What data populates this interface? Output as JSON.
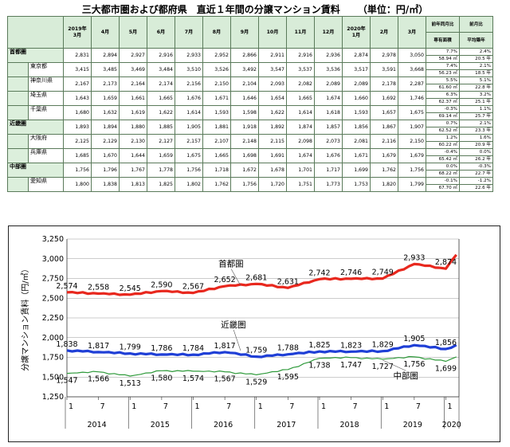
{
  "title": "三大都市圏および都府県　直近１年間の分譲マンション賃料",
  "unit": "（単位：円/㎡）",
  "table": {
    "months": [
      "2019年\n3月",
      "4月",
      "5月",
      "6月",
      "7月",
      "8月",
      "9月",
      "10月",
      "11月",
      "12月",
      "2020年\n1月",
      "2月",
      "3月"
    ],
    "yoy_header": "前年同月比",
    "yoy_sub": "専有面積",
    "mom_header": "前月比",
    "mom_sub": "平均築年",
    "rows": [
      {
        "region": "首都圏",
        "pref": "",
        "values": [
          "2,831",
          "2,894",
          "2,927",
          "2,916",
          "2,933",
          "2,952",
          "2,866",
          "2,911",
          "2,916",
          "2,936",
          "2,874",
          "2,978",
          "3,050"
        ],
        "yoy": "7.7%",
        "mom": "2.4%",
        "area": "58.94 ㎡",
        "age": "20.5 年"
      },
      {
        "region": "",
        "pref": "東京都",
        "values": [
          "3,415",
          "3,485",
          "3,469",
          "3,484",
          "3,510",
          "3,526",
          "3,492",
          "3,547",
          "3,537",
          "3,536",
          "3,517",
          "3,591",
          "3,668"
        ],
        "yoy": "7.4%",
        "mom": "2.1%",
        "area": "56.23 ㎡",
        "age": "18.5 年"
      },
      {
        "region": "",
        "pref": "神奈川県",
        "values": [
          "2,167",
          "2,173",
          "2,164",
          "2,174",
          "2,156",
          "2,150",
          "2,104",
          "2,093",
          "2,082",
          "2,089",
          "2,089",
          "2,178",
          "2,287"
        ],
        "yoy": "5.5%",
        "mom": "5.1%",
        "area": "61.60 ㎡",
        "age": "22.8 年"
      },
      {
        "region": "",
        "pref": "埼玉県",
        "values": [
          "1,643",
          "1,659",
          "1,661",
          "1,665",
          "1,676",
          "1,671",
          "1,646",
          "1,654",
          "1,665",
          "1,674",
          "1,660",
          "1,692",
          "1,746"
        ],
        "yoy": "6.3%",
        "mom": "3.2%",
        "area": "62.37 ㎡",
        "age": "25.1 年"
      },
      {
        "region": "",
        "pref": "千葉県",
        "values": [
          "1,680",
          "1,632",
          "1,619",
          "1,622",
          "1,614",
          "1,593",
          "1,598",
          "1,622",
          "1,614",
          "1,618",
          "1,593",
          "1,657",
          "1,675"
        ],
        "yoy": "-0.3%",
        "mom": "1.1%",
        "area": "69.14 ㎡",
        "age": "25.7 年"
      },
      {
        "region": "近畿圏",
        "pref": "",
        "values": [
          "1,893",
          "1,894",
          "1,880",
          "1,885",
          "1,905",
          "1,881",
          "1,918",
          "1,892",
          "1,874",
          "1,857",
          "1,856",
          "1,867",
          "1,907"
        ],
        "yoy": "0.7%",
        "mom": "2.1%",
        "area": "62.52 ㎡",
        "age": "23.3 年"
      },
      {
        "region": "",
        "pref": "大阪府",
        "values": [
          "2,125",
          "2,129",
          "2,130",
          "2,127",
          "2,157",
          "2,107",
          "2,148",
          "2,115",
          "2,098",
          "2,073",
          "2,081",
          "2,116",
          "2,150"
        ],
        "yoy": "1.2%",
        "mom": "1.6%",
        "area": "60.22 ㎡",
        "age": "20.9 年"
      },
      {
        "region": "",
        "pref": "兵庫県",
        "values": [
          "1,685",
          "1,670",
          "1,644",
          "1,659",
          "1,675",
          "1,665",
          "1,698",
          "1,691",
          "1,674",
          "1,676",
          "1,671",
          "1,679",
          "1,679"
        ],
        "yoy": "-0.4%",
        "mom": "0.0%",
        "area": "65.42 ㎡",
        "age": "26.2 年"
      },
      {
        "region": "中部圏",
        "pref": "",
        "values": [
          "1,756",
          "1,796",
          "1,767",
          "1,778",
          "1,756",
          "1,718",
          "1,672",
          "1,678",
          "1,701",
          "1,717",
          "1,699",
          "1,762",
          "1,756"
        ],
        "yoy": "0.0%",
        "mom": "-0.3%",
        "area": "68.22 ㎡",
        "age": "22.7 年"
      },
      {
        "region": "",
        "pref": "愛知県",
        "values": [
          "1,800",
          "1,838",
          "1,813",
          "1,825",
          "1,802",
          "1,762",
          "1,756",
          "1,720",
          "1,751",
          "1,773",
          "1,753",
          "1,820",
          "1,799"
        ],
        "yoy": "-0.1%",
        "mom": "-1.2%",
        "area": "67.70 ㎡",
        "age": "22.6 年"
      }
    ]
  },
  "chart_data": {
    "type": "line",
    "ylabel": "分譲マンション賃料（円/㎡）",
    "ylim": [
      1250,
      3250
    ],
    "yticks": [
      "1,250",
      "1,500",
      "1,750",
      "2,000",
      "2,250",
      "2,500",
      "2,750",
      "3,000",
      "3,250"
    ],
    "ytick_values": [
      1250,
      1500,
      1750,
      2000,
      2250,
      2500,
      2750,
      3000,
      3250
    ],
    "x_start": "2014-01",
    "x_end": "2020-03",
    "month_ticks": [
      {
        "date": "2014-01",
        "label": "1"
      },
      {
        "date": "2014-07",
        "label": "7"
      },
      {
        "date": "2015-01",
        "label": "1"
      },
      {
        "date": "2015-07",
        "label": "7"
      },
      {
        "date": "2016-01",
        "label": "1"
      },
      {
        "date": "2016-07",
        "label": "7"
      },
      {
        "date": "2017-01",
        "label": "1"
      },
      {
        "date": "2017-07",
        "label": "7"
      },
      {
        "date": "2018-01",
        "label": "1"
      },
      {
        "date": "2018-07",
        "label": "7"
      },
      {
        "date": "2019-01",
        "label": "1"
      },
      {
        "date": "2019-07",
        "label": "7"
      },
      {
        "date": "2020-01",
        "label": "1"
      }
    ],
    "years": [
      {
        "from": "2014-01",
        "to": "2014-12",
        "label": "2014"
      },
      {
        "from": "2015-01",
        "to": "2015-12",
        "label": "2015"
      },
      {
        "from": "2016-01",
        "to": "2016-12",
        "label": "2016"
      },
      {
        "from": "2017-01",
        "to": "2017-12",
        "label": "2017"
      },
      {
        "from": "2018-01",
        "to": "2018-12",
        "label": "2018"
      },
      {
        "from": "2019-01",
        "to": "2019-12",
        "label": "2019"
      },
      {
        "from": "2020-01",
        "to": "2020-03",
        "label": "2020"
      }
    ],
    "grid": true,
    "series": [
      {
        "name": "首都圏",
        "color": "#e8281e",
        "anchors": [
          [
            "2014-01",
            2574
          ],
          [
            "2014-07",
            2558
          ],
          [
            "2015-01",
            2545
          ],
          [
            "2015-07",
            2590
          ],
          [
            "2016-01",
            2567
          ],
          [
            "2016-07",
            2652
          ],
          [
            "2017-01",
            2681
          ],
          [
            "2017-07",
            2631
          ],
          [
            "2018-01",
            2742
          ],
          [
            "2018-07",
            2746
          ],
          [
            "2019-01",
            2749
          ],
          [
            "2019-07",
            2933
          ],
          [
            "2020-01",
            2874
          ],
          [
            "2020-03",
            3050
          ]
        ],
        "labels": [
          [
            "2014-01",
            "2,574"
          ],
          [
            "2014-07",
            "2,558"
          ],
          [
            "2015-01",
            "2,545"
          ],
          [
            "2015-07",
            "2,590"
          ],
          [
            "2016-01",
            "2,567"
          ],
          [
            "2016-07",
            "2,652"
          ],
          [
            "2017-01",
            "2,681"
          ],
          [
            "2017-07",
            "2,631"
          ],
          [
            "2018-01",
            "2,742"
          ],
          [
            "2018-07",
            "2,746"
          ],
          [
            "2019-01",
            "2,749"
          ],
          [
            "2019-07",
            "2,933"
          ],
          [
            "2020-01",
            "2,874"
          ]
        ]
      },
      {
        "name": "近畿圏",
        "color": "#1f3fd6",
        "anchors": [
          [
            "2014-01",
            1838
          ],
          [
            "2014-07",
            1817
          ],
          [
            "2015-01",
            1799
          ],
          [
            "2015-07",
            1786
          ],
          [
            "2016-01",
            1784
          ],
          [
            "2016-07",
            1817
          ],
          [
            "2017-01",
            1759
          ],
          [
            "2017-07",
            1788
          ],
          [
            "2018-01",
            1825
          ],
          [
            "2018-07",
            1823
          ],
          [
            "2019-01",
            1829
          ],
          [
            "2019-07",
            1905
          ],
          [
            "2020-01",
            1856
          ],
          [
            "2020-03",
            1907
          ]
        ],
        "labels": [
          [
            "2014-01",
            "1,838"
          ],
          [
            "2014-07",
            "1,817"
          ],
          [
            "2015-01",
            "1,799"
          ],
          [
            "2015-07",
            "1,786"
          ],
          [
            "2016-01",
            "1,784"
          ],
          [
            "2016-07",
            "1,817"
          ],
          [
            "2017-01",
            "1,759"
          ],
          [
            "2017-07",
            "1,788"
          ],
          [
            "2018-01",
            "1,825"
          ],
          [
            "2018-07",
            "1,823"
          ],
          [
            "2019-01",
            "1,829"
          ],
          [
            "2019-07",
            "1,905"
          ],
          [
            "2020-01",
            "1,856"
          ]
        ]
      },
      {
        "name": "中部圏",
        "color": "#2e9a3a",
        "anchors": [
          [
            "2014-01",
            1547
          ],
          [
            "2014-07",
            1566
          ],
          [
            "2015-01",
            1513
          ],
          [
            "2015-07",
            1580
          ],
          [
            "2016-01",
            1574
          ],
          [
            "2016-07",
            1567
          ],
          [
            "2017-01",
            1529
          ],
          [
            "2017-07",
            1595
          ],
          [
            "2018-01",
            1738
          ],
          [
            "2018-07",
            1747
          ],
          [
            "2019-01",
            1727
          ],
          [
            "2019-07",
            1756
          ],
          [
            "2020-01",
            1699
          ],
          [
            "2020-03",
            1756
          ]
        ],
        "labels": [
          [
            "2014-01",
            "1,547"
          ],
          [
            "2014-07",
            "1,566"
          ],
          [
            "2015-01",
            "1,513"
          ],
          [
            "2015-07",
            "1,580"
          ],
          [
            "2016-01",
            "1,574"
          ],
          [
            "2016-07",
            "1,567"
          ],
          [
            "2017-01",
            "1,529"
          ],
          [
            "2017-07",
            "1,595"
          ],
          [
            "2018-01",
            "1,738"
          ],
          [
            "2018-07",
            "1,747"
          ],
          [
            "2019-01",
            "1,727"
          ],
          [
            "2019-07",
            "1,756"
          ],
          [
            "2020-01",
            "1,699"
          ]
        ]
      }
    ]
  }
}
